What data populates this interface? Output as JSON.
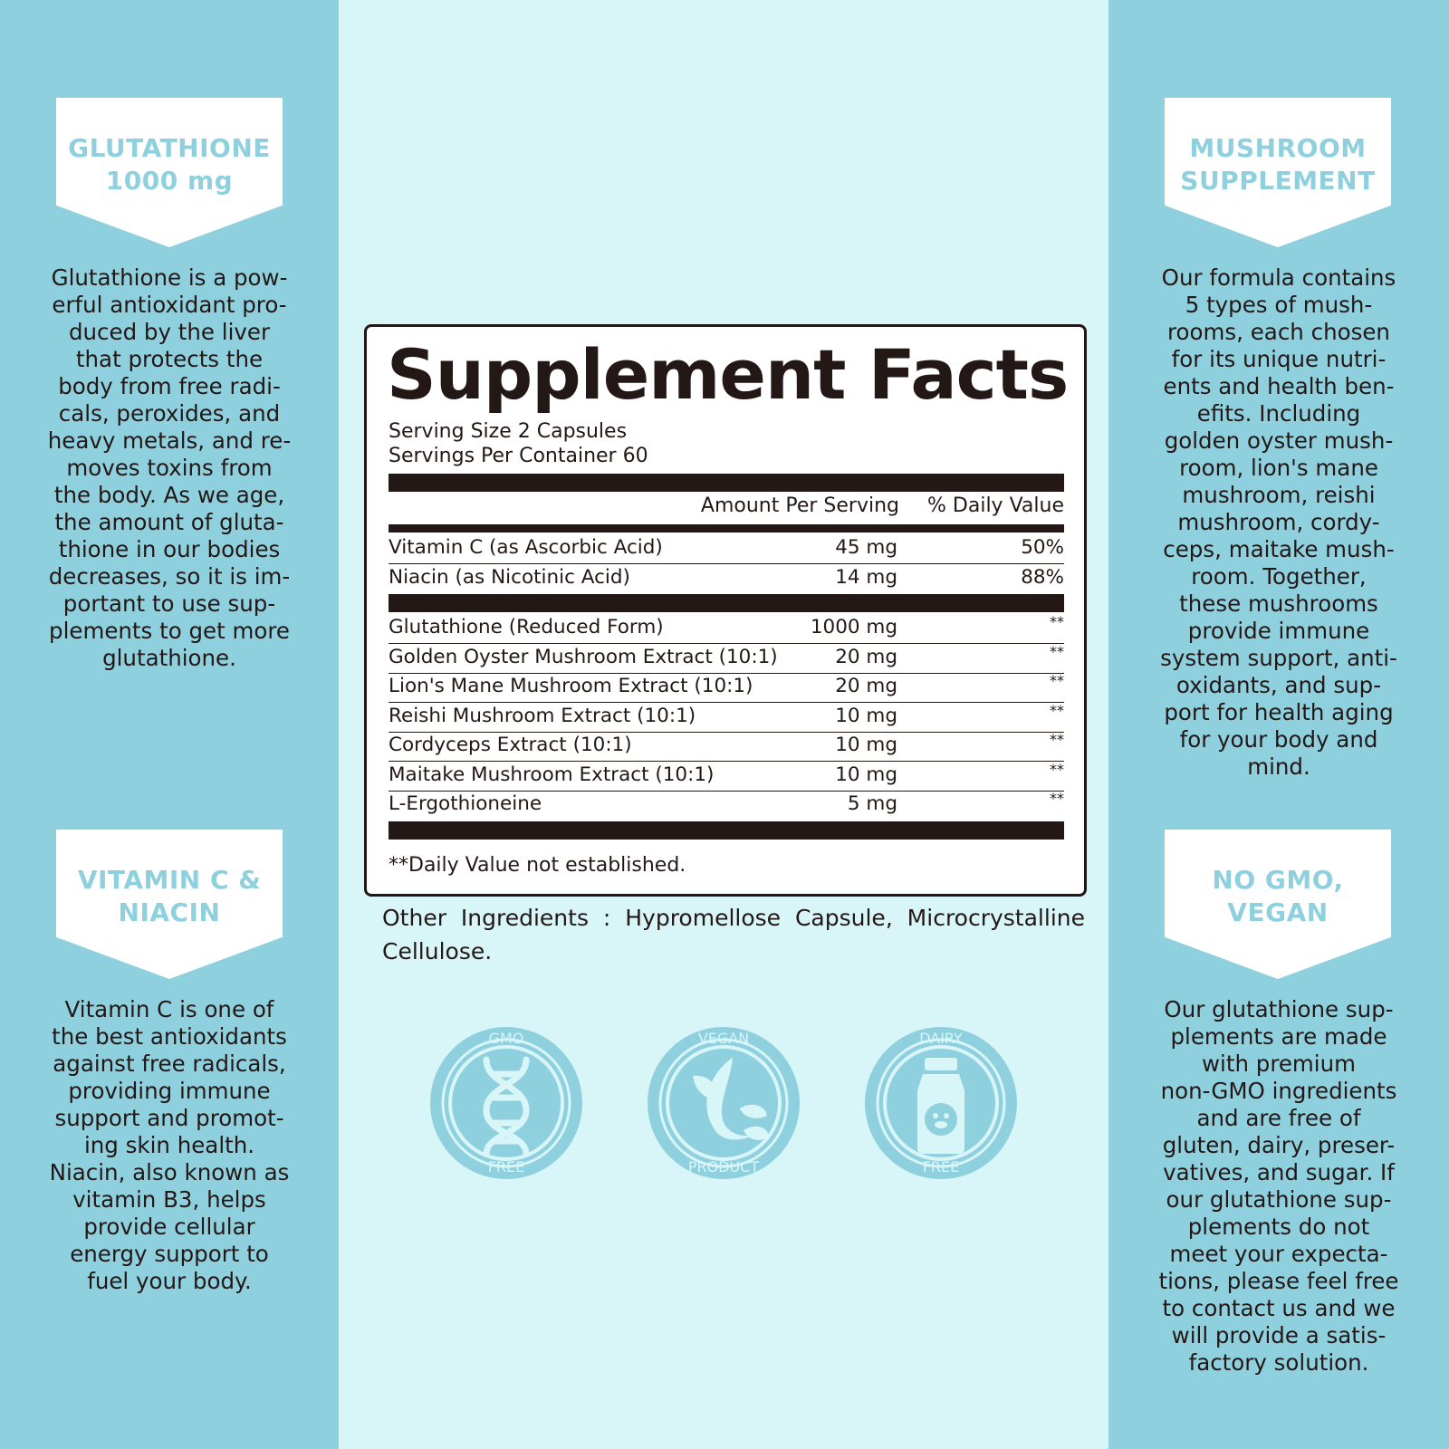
{
  "left": {
    "top_badge": {
      "line1": "GLUTATHIONE",
      "line2": "1000 mg"
    },
    "top_text": [
      "Glutathione is a pow-",
      "erful antioxidant pro-",
      "duced by the liver",
      "that protects the",
      "body from free radi-",
      "cals, peroxides, and",
      "heavy metals, and re-",
      "moves toxins from",
      "the body. As we age,",
      "the amount of gluta-",
      "thione in our bodies",
      "decreases, so it is im-",
      "portant to use sup-",
      "plements to get more",
      "glutathione."
    ],
    "bottom_badge": {
      "line1": "VITAMIN C &",
      "line2": "NIACIN"
    },
    "bottom_text": [
      "Vitamin C is one of",
      "the best antioxidants",
      "against free radicals,",
      "providing immune",
      "support and promot-",
      "ing skin health.",
      "Niacin, also known as",
      "vitamin B3, helps",
      "provide cellular",
      "energy support to",
      "fuel your body."
    ]
  },
  "right": {
    "top_badge": {
      "line1": "MUSHROOM",
      "line2": "SUPPLEMENT"
    },
    "top_text": [
      "Our formula contains",
      "5 types of mush-",
      "rooms, each chosen",
      "for its unique nutri-",
      "ents and health ben-",
      "efits. Including",
      "golden oyster mush-",
      "room, lion's mane",
      "mushroom, reishi",
      "mushroom, cordy-",
      "ceps, maitake mush-",
      "room. Together,",
      "these mushrooms",
      "provide immune",
      "system support, anti-",
      "oxidants, and sup-",
      "port for health aging",
      "for your body and",
      "mind."
    ],
    "bottom_badge": {
      "line1": "NO GMO,",
      "line2": "VEGAN"
    },
    "bottom_text": [
      "Our glutathione sup-",
      "plements are made",
      "with premium",
      "non-GMO ingredients",
      "and are free of",
      "gluten, dairy, preser-",
      "vatives, and sugar. If",
      "our glutathione sup-",
      "plements do not",
      "meet your expecta-",
      "tions, please feel free",
      "to contact us and we",
      "will provide a satis-",
      "factory solution."
    ]
  },
  "facts": {
    "title": "Supplement Facts",
    "serving_size": "Serving Size 2 Capsules",
    "servings_per_container": "Servings Per Container 60",
    "col_amount": "Amount Per Serving",
    "col_dv": "% Daily Value",
    "vitamins": [
      {
        "name": "Vitamin C (as Ascorbic Acid)",
        "amount": "45 mg",
        "dv": "50%"
      },
      {
        "name": "Niacin (as Nicotinic Acid)",
        "amount": "14 mg",
        "dv": "88%"
      }
    ],
    "others": [
      {
        "name": "Glutathione (Reduced Form)",
        "amount": "1000 mg",
        "dv": "**"
      },
      {
        "name": "Golden Oyster Mushroom Extract (10:1)",
        "amount": "20 mg",
        "dv": "**"
      },
      {
        "name": "Lion's Mane Mushroom Extract (10:1)",
        "amount": "20 mg",
        "dv": "**"
      },
      {
        "name": "Reishi Mushroom Extract (10:1)",
        "amount": "10 mg",
        "dv": "**"
      },
      {
        "name": "Cordyceps Extract (10:1)",
        "amount": "10 mg",
        "dv": "**"
      },
      {
        "name": "Maitake Mushroom Extract (10:1)",
        "amount": "10 mg",
        "dv": "**"
      },
      {
        "name": "L-Ergothioneine",
        "amount": "5 mg",
        "dv": "**"
      }
    ],
    "footnote": "**Daily Value not established."
  },
  "other_ingredients": "Other Ingredients : Hypromellose Capsule, Microcrystalline Cellulose.",
  "seals": [
    {
      "icon": "dna-icon",
      "top": "GMO",
      "bottom": "FREE"
    },
    {
      "icon": "leaf-icon",
      "top": "VEGAN",
      "bottom": "PRODUCT"
    },
    {
      "icon": "milk-bottle-icon",
      "top": "DAIRY",
      "bottom": "FREE"
    }
  ],
  "colors": {
    "accent": "#8fd0df",
    "background": "#d8f5f8",
    "ink": "#231815",
    "seal": "#8fd0df"
  }
}
